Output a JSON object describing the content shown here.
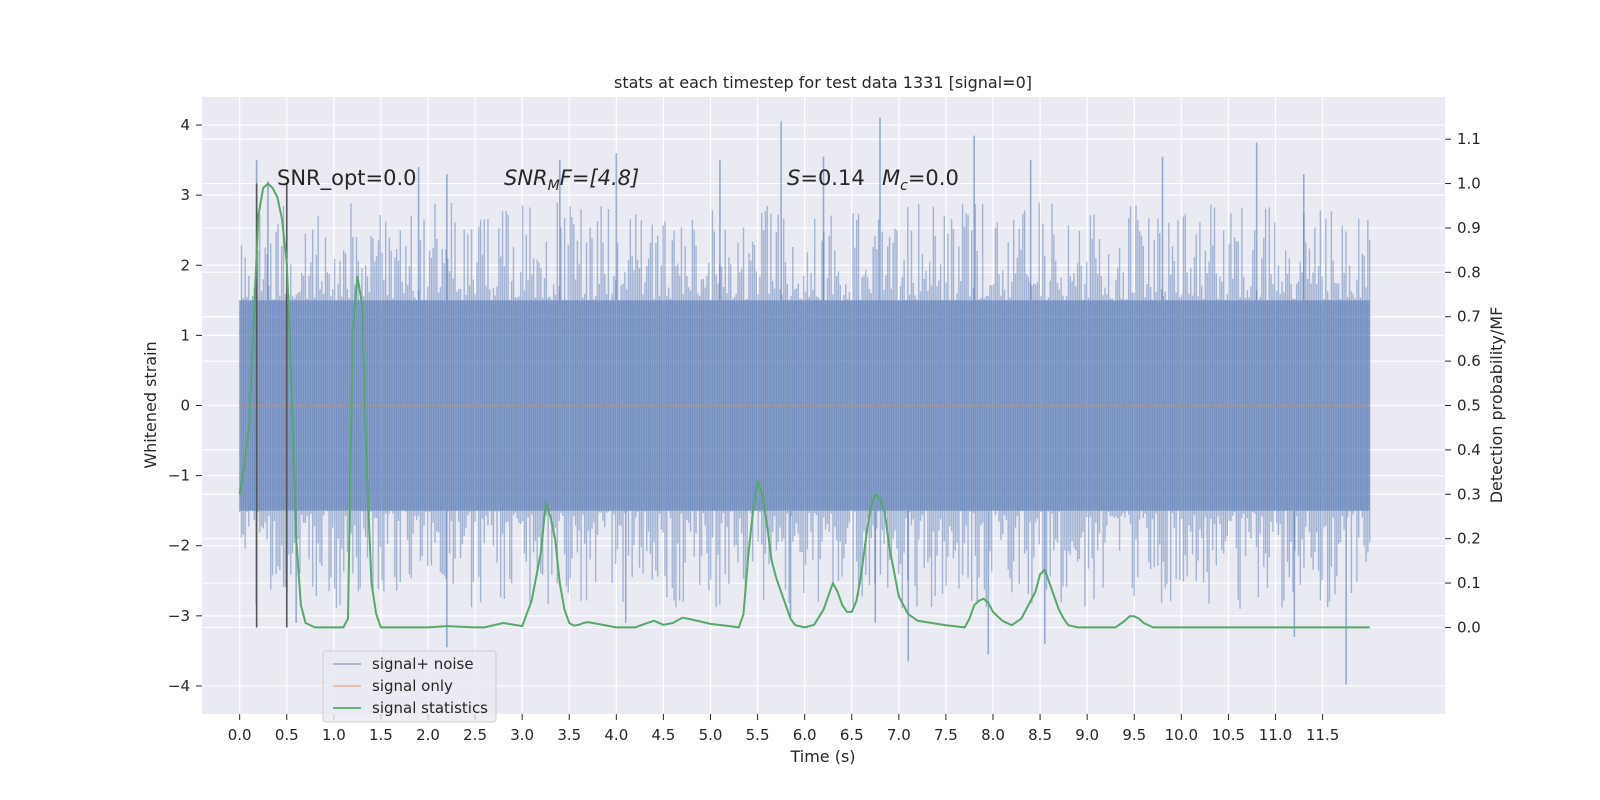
{
  "chart_data": {
    "type": "line",
    "title": "stats at each timestep for test data 1331 [signal=0]",
    "xlabel": "Time (s)",
    "ylabel_left": "Whitened strain",
    "ylabel_right": "Detection probability/MF",
    "xlim": [
      -0.4,
      12.8
    ],
    "xticks": [
      0.0,
      0.5,
      1.0,
      1.5,
      2.0,
      2.5,
      3.0,
      3.5,
      4.0,
      4.5,
      5.0,
      5.5,
      6.0,
      6.5,
      7.0,
      7.5,
      8.0,
      8.5,
      9.0,
      9.5,
      10.0,
      10.5,
      11.0,
      11.5
    ],
    "xtick_labels": [
      "0.0",
      "0.5",
      "1.0",
      "1.5",
      "2.0",
      "2.5",
      "3.0",
      "3.5",
      "4.0",
      "4.5",
      "5.0",
      "5.5",
      "6.0",
      "6.5",
      "7.0",
      "7.5",
      "8.0",
      "8.5",
      "9.0",
      "9.5",
      "10.0",
      "10.5",
      "11.0",
      "11.5"
    ],
    "ylim_left": [
      -4.4,
      4.4
    ],
    "yticks_left": [
      4,
      3,
      2,
      1,
      0,
      -1,
      -2,
      -3,
      -4
    ],
    "ytick_labels_left": [
      "4",
      "3",
      "2",
      "1",
      "0",
      "−1",
      "−2",
      "−3",
      "−4"
    ],
    "ylim_right": [
      -0.195,
      1.195
    ],
    "yticks_right": [
      1.1,
      1.0,
      0.9,
      0.8,
      0.7,
      0.6,
      0.5,
      0.4,
      0.3,
      0.2,
      0.1,
      0.0
    ],
    "ytick_labels_right": [
      "1.1",
      "1.0",
      "0.9",
      "0.8",
      "0.7",
      "0.6",
      "0.5",
      "0.4",
      "0.3",
      "0.2",
      "0.1",
      "0.0"
    ],
    "grid": true,
    "legend_position": "lower-left",
    "series": [
      {
        "name": "signal+ noise",
        "color": "#4c72b0",
        "axis": "left",
        "x_range": [
          0.0,
          12.0
        ],
        "band": [
          -1.5,
          1.5
        ],
        "peak_spikes": [
          [
            0.18,
            3.5
          ],
          [
            0.3,
            3.2
          ],
          [
            1.9,
            3.4
          ],
          [
            2.2,
            3.3
          ],
          [
            3.4,
            3.5
          ],
          [
            4.0,
            3.6
          ],
          [
            5.1,
            3.5
          ],
          [
            5.75,
            4.05
          ],
          [
            6.2,
            3.55
          ],
          [
            6.8,
            4.1
          ],
          [
            7.8,
            3.85
          ],
          [
            8.4,
            3.5
          ],
          [
            9.8,
            3.55
          ],
          [
            10.8,
            3.75
          ],
          [
            11.3,
            3.3
          ],
          [
            2.2,
            -3.45
          ],
          [
            7.1,
            -3.65
          ],
          [
            7.95,
            -3.55
          ],
          [
            8.55,
            -3.4
          ],
          [
            11.2,
            -3.3
          ],
          [
            11.75,
            -3.98
          ],
          [
            0.6,
            -3.1
          ],
          [
            4.1,
            -3.1
          ],
          [
            5.85,
            -3.05
          ],
          [
            6.75,
            -3.1
          ]
        ]
      },
      {
        "name": "signal only",
        "color": "#dd8452",
        "axis": "left",
        "x": [
          0.0,
          12.0
        ],
        "y": [
          0.0,
          0.0
        ]
      },
      {
        "name": "signal statistics",
        "color": "#55a868",
        "axis": "right",
        "x": [
          0.0,
          0.05,
          0.1,
          0.15,
          0.2,
          0.25,
          0.3,
          0.35,
          0.4,
          0.45,
          0.5,
          0.55,
          0.6,
          0.65,
          0.7,
          0.8,
          1.0,
          1.1,
          1.15,
          1.2,
          1.25,
          1.3,
          1.35,
          1.4,
          1.45,
          1.5,
          1.6,
          2.0,
          2.2,
          2.5,
          2.6,
          2.8,
          3.0,
          3.1,
          3.2,
          3.25,
          3.3,
          3.35,
          3.4,
          3.45,
          3.5,
          3.55,
          3.6,
          3.65,
          3.7,
          3.8,
          4.0,
          4.2,
          4.3,
          4.4,
          4.5,
          4.6,
          4.7,
          4.8,
          5.0,
          5.2,
          5.3,
          5.35,
          5.4,
          5.45,
          5.5,
          5.55,
          5.6,
          5.65,
          5.7,
          5.75,
          5.8,
          5.85,
          5.9,
          6.0,
          6.1,
          6.2,
          6.3,
          6.35,
          6.4,
          6.45,
          6.5,
          6.55,
          6.6,
          6.65,
          6.7,
          6.75,
          6.8,
          6.85,
          6.9,
          7.0,
          7.1,
          7.2,
          7.5,
          7.7,
          7.75,
          7.8,
          7.85,
          7.9,
          7.95,
          8.0,
          8.1,
          8.2,
          8.3,
          8.45,
          8.5,
          8.55,
          8.6,
          8.65,
          8.7,
          8.75,
          8.8,
          8.9,
          9.0,
          9.3,
          9.4,
          9.45,
          9.5,
          9.55,
          9.6,
          9.7,
          9.8,
          10.0,
          11.0,
          12.0
        ],
        "y": [
          0.3,
          0.37,
          0.45,
          0.7,
          0.93,
          0.99,
          1.0,
          0.99,
          0.97,
          0.92,
          0.82,
          0.55,
          0.2,
          0.05,
          0.01,
          0.0,
          0.0,
          0.0,
          0.02,
          0.67,
          0.79,
          0.73,
          0.35,
          0.1,
          0.03,
          0.0,
          0.0,
          0.0,
          0.003,
          0.0,
          0.0,
          0.01,
          0.003,
          0.06,
          0.17,
          0.28,
          0.25,
          0.2,
          0.1,
          0.04,
          0.01,
          0.004,
          0.006,
          0.01,
          0.012,
          0.008,
          0.0,
          0.0,
          0.008,
          0.015,
          0.006,
          0.01,
          0.022,
          0.018,
          0.008,
          0.003,
          0.0,
          0.03,
          0.16,
          0.26,
          0.33,
          0.3,
          0.23,
          0.15,
          0.11,
          0.08,
          0.05,
          0.02,
          0.005,
          0.0,
          0.006,
          0.04,
          0.1,
          0.08,
          0.05,
          0.035,
          0.035,
          0.06,
          0.12,
          0.2,
          0.27,
          0.3,
          0.29,
          0.26,
          0.18,
          0.07,
          0.03,
          0.015,
          0.005,
          0.0,
          0.02,
          0.05,
          0.06,
          0.065,
          0.055,
          0.035,
          0.015,
          0.005,
          0.02,
          0.08,
          0.12,
          0.13,
          0.1,
          0.07,
          0.04,
          0.02,
          0.005,
          0.0,
          0.0,
          0.0,
          0.015,
          0.025,
          0.025,
          0.02,
          0.01,
          0.0,
          0.0,
          0.0,
          0.0,
          0.0
        ]
      }
    ],
    "vertical_markers": [
      {
        "x": 0.18,
        "y_from": 0.0,
        "y_to": 1.0
      },
      {
        "x": 0.5,
        "y_from": 0.0,
        "y_to": 1.0
      }
    ],
    "annotations": {
      "snr_opt": "SNR_opt=0.0",
      "snr_mf_base": "SNR",
      "snr_mf_sub": "M",
      "snr_mf_rest": "F=[4.8]",
      "s_label": "S",
      "s_value": "=0.14",
      "mc_base": "M",
      "mc_sub": "c",
      "mc_value": "=0.0"
    },
    "legend": [
      "signal+ noise",
      "signal only",
      "signal statistics"
    ]
  }
}
